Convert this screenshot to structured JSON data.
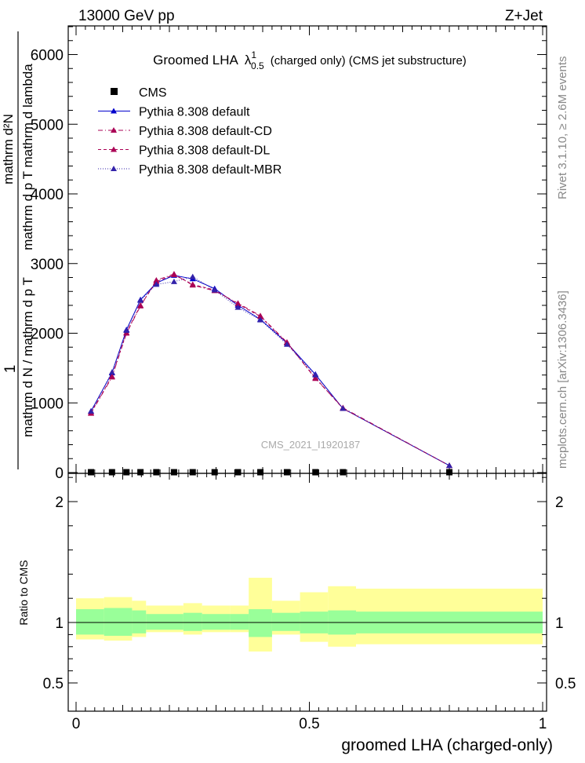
{
  "header": {
    "left": "13000 GeV pp",
    "right": "Z+Jet"
  },
  "side": {
    "rivet": "Rivet 3.1.10, ≥ 2.6M events",
    "mcplots": "mcplots.cern.ch [arXiv:1306.3436]"
  },
  "colors": {
    "cms": "#000000",
    "default": "#0000cc",
    "cd": "#aa0055",
    "dl": "#aa0055",
    "mbr": "#3322aa",
    "band_stat": "#99ff99",
    "band_total": "#ffff99"
  },
  "chart_data": [
    {
      "type": "line",
      "title": "Groomed LHA  λ¹₀.₅ (charged only) (CMS jet substructure)",
      "title_main": "Groomed LHA",
      "title_lambda": "λ",
      "title_sup": "1",
      "title_sub": "0.5",
      "title_rest": "(charged only) (CMS jet substructure)",
      "watermark": "CMS_2021_I1920187",
      "ylabel_top": "1",
      "ylabel_num": "mathrm d²N",
      "ylabel_num2": "mathrm d p  T  mathrm d lambda",
      "ylabel_den": "mathrm d N / mathrm d p  T",
      "xlim": [
        0,
        1
      ],
      "ylim": [
        0,
        6400
      ],
      "yticks": [
        0,
        1000,
        2000,
        3000,
        4000,
        5000,
        6000
      ],
      "ytick_labels": [
        "0",
        "1000",
        "2000",
        "3000",
        "4000",
        "5000",
        "6000"
      ],
      "x": [
        0.032,
        0.077,
        0.108,
        0.138,
        0.172,
        0.21,
        0.25,
        0.297,
        0.347,
        0.395,
        0.452,
        0.513,
        0.572,
        0.8
      ],
      "series": [
        {
          "name": "CMS",
          "key": "cms",
          "style": "marker-square",
          "values": [
            5,
            5,
            5,
            5,
            5,
            5,
            5,
            5,
            5,
            5,
            5,
            5,
            5,
            5
          ]
        },
        {
          "name": "Pythia 8.308 default",
          "key": "default",
          "style": "solid",
          "values": [
            880,
            1430,
            2050,
            2480,
            2720,
            2830,
            2780,
            2640,
            2400,
            2200,
            1860,
            1410,
            920,
            100
          ]
        },
        {
          "name": "Pythia 8.308 default-CD",
          "key": "cd",
          "style": "dashdot",
          "values": [
            850,
            1370,
            2000,
            2390,
            2760,
            2850,
            2690,
            2610,
            2430,
            2250,
            1870,
            1350,
            930,
            100
          ]
        },
        {
          "name": "Pythia 8.308 default-DL",
          "key": "dl",
          "style": "dashed",
          "values": [
            860,
            1380,
            2010,
            2400,
            2740,
            2840,
            2700,
            2620,
            2420,
            2240,
            1860,
            1360,
            920,
            100
          ]
        },
        {
          "name": "Pythia 8.308 default-MBR",
          "key": "mbr",
          "style": "dotted",
          "values": [
            880,
            1440,
            2040,
            2470,
            2700,
            2740,
            2810,
            2620,
            2370,
            2190,
            1840,
            1400,
            920,
            100
          ]
        }
      ]
    },
    {
      "type": "area",
      "ylabel": "Ratio to CMS",
      "xlabel": "groomed LHA (charged-only)",
      "xlim": [
        0,
        1
      ],
      "ylim": [
        0.3,
        2.3
      ],
      "xticks": [
        0,
        0.5,
        1
      ],
      "xtick_labels": [
        "0",
        "0.5",
        "1"
      ],
      "yticks": [
        0.5,
        1,
        2
      ],
      "ytick_labels": [
        "0.5",
        "1",
        "2"
      ],
      "bin_edges": [
        0,
        0.06,
        0.1,
        0.12,
        0.15,
        0.2,
        0.23,
        0.27,
        0.33,
        0.37,
        0.42,
        0.48,
        0.54,
        0.6,
        1
      ],
      "stat_low": [
        0.9,
        0.89,
        0.89,
        0.91,
        0.94,
        0.94,
        0.93,
        0.94,
        0.94,
        0.88,
        0.93,
        0.91,
        0.9,
        0.91
      ],
      "stat_high": [
        1.11,
        1.12,
        1.12,
        1.1,
        1.07,
        1.07,
        1.08,
        1.07,
        1.07,
        1.11,
        1.08,
        1.09,
        1.1,
        1.09
      ],
      "total_low": [
        0.86,
        0.85,
        0.85,
        0.88,
        0.92,
        0.92,
        0.9,
        0.92,
        0.92,
        0.76,
        0.9,
        0.84,
        0.8,
        0.82
      ],
      "total_high": [
        1.2,
        1.21,
        1.21,
        1.18,
        1.14,
        1.14,
        1.16,
        1.14,
        1.14,
        1.37,
        1.18,
        1.25,
        1.3,
        1.28
      ],
      "reference": 1
    }
  ]
}
